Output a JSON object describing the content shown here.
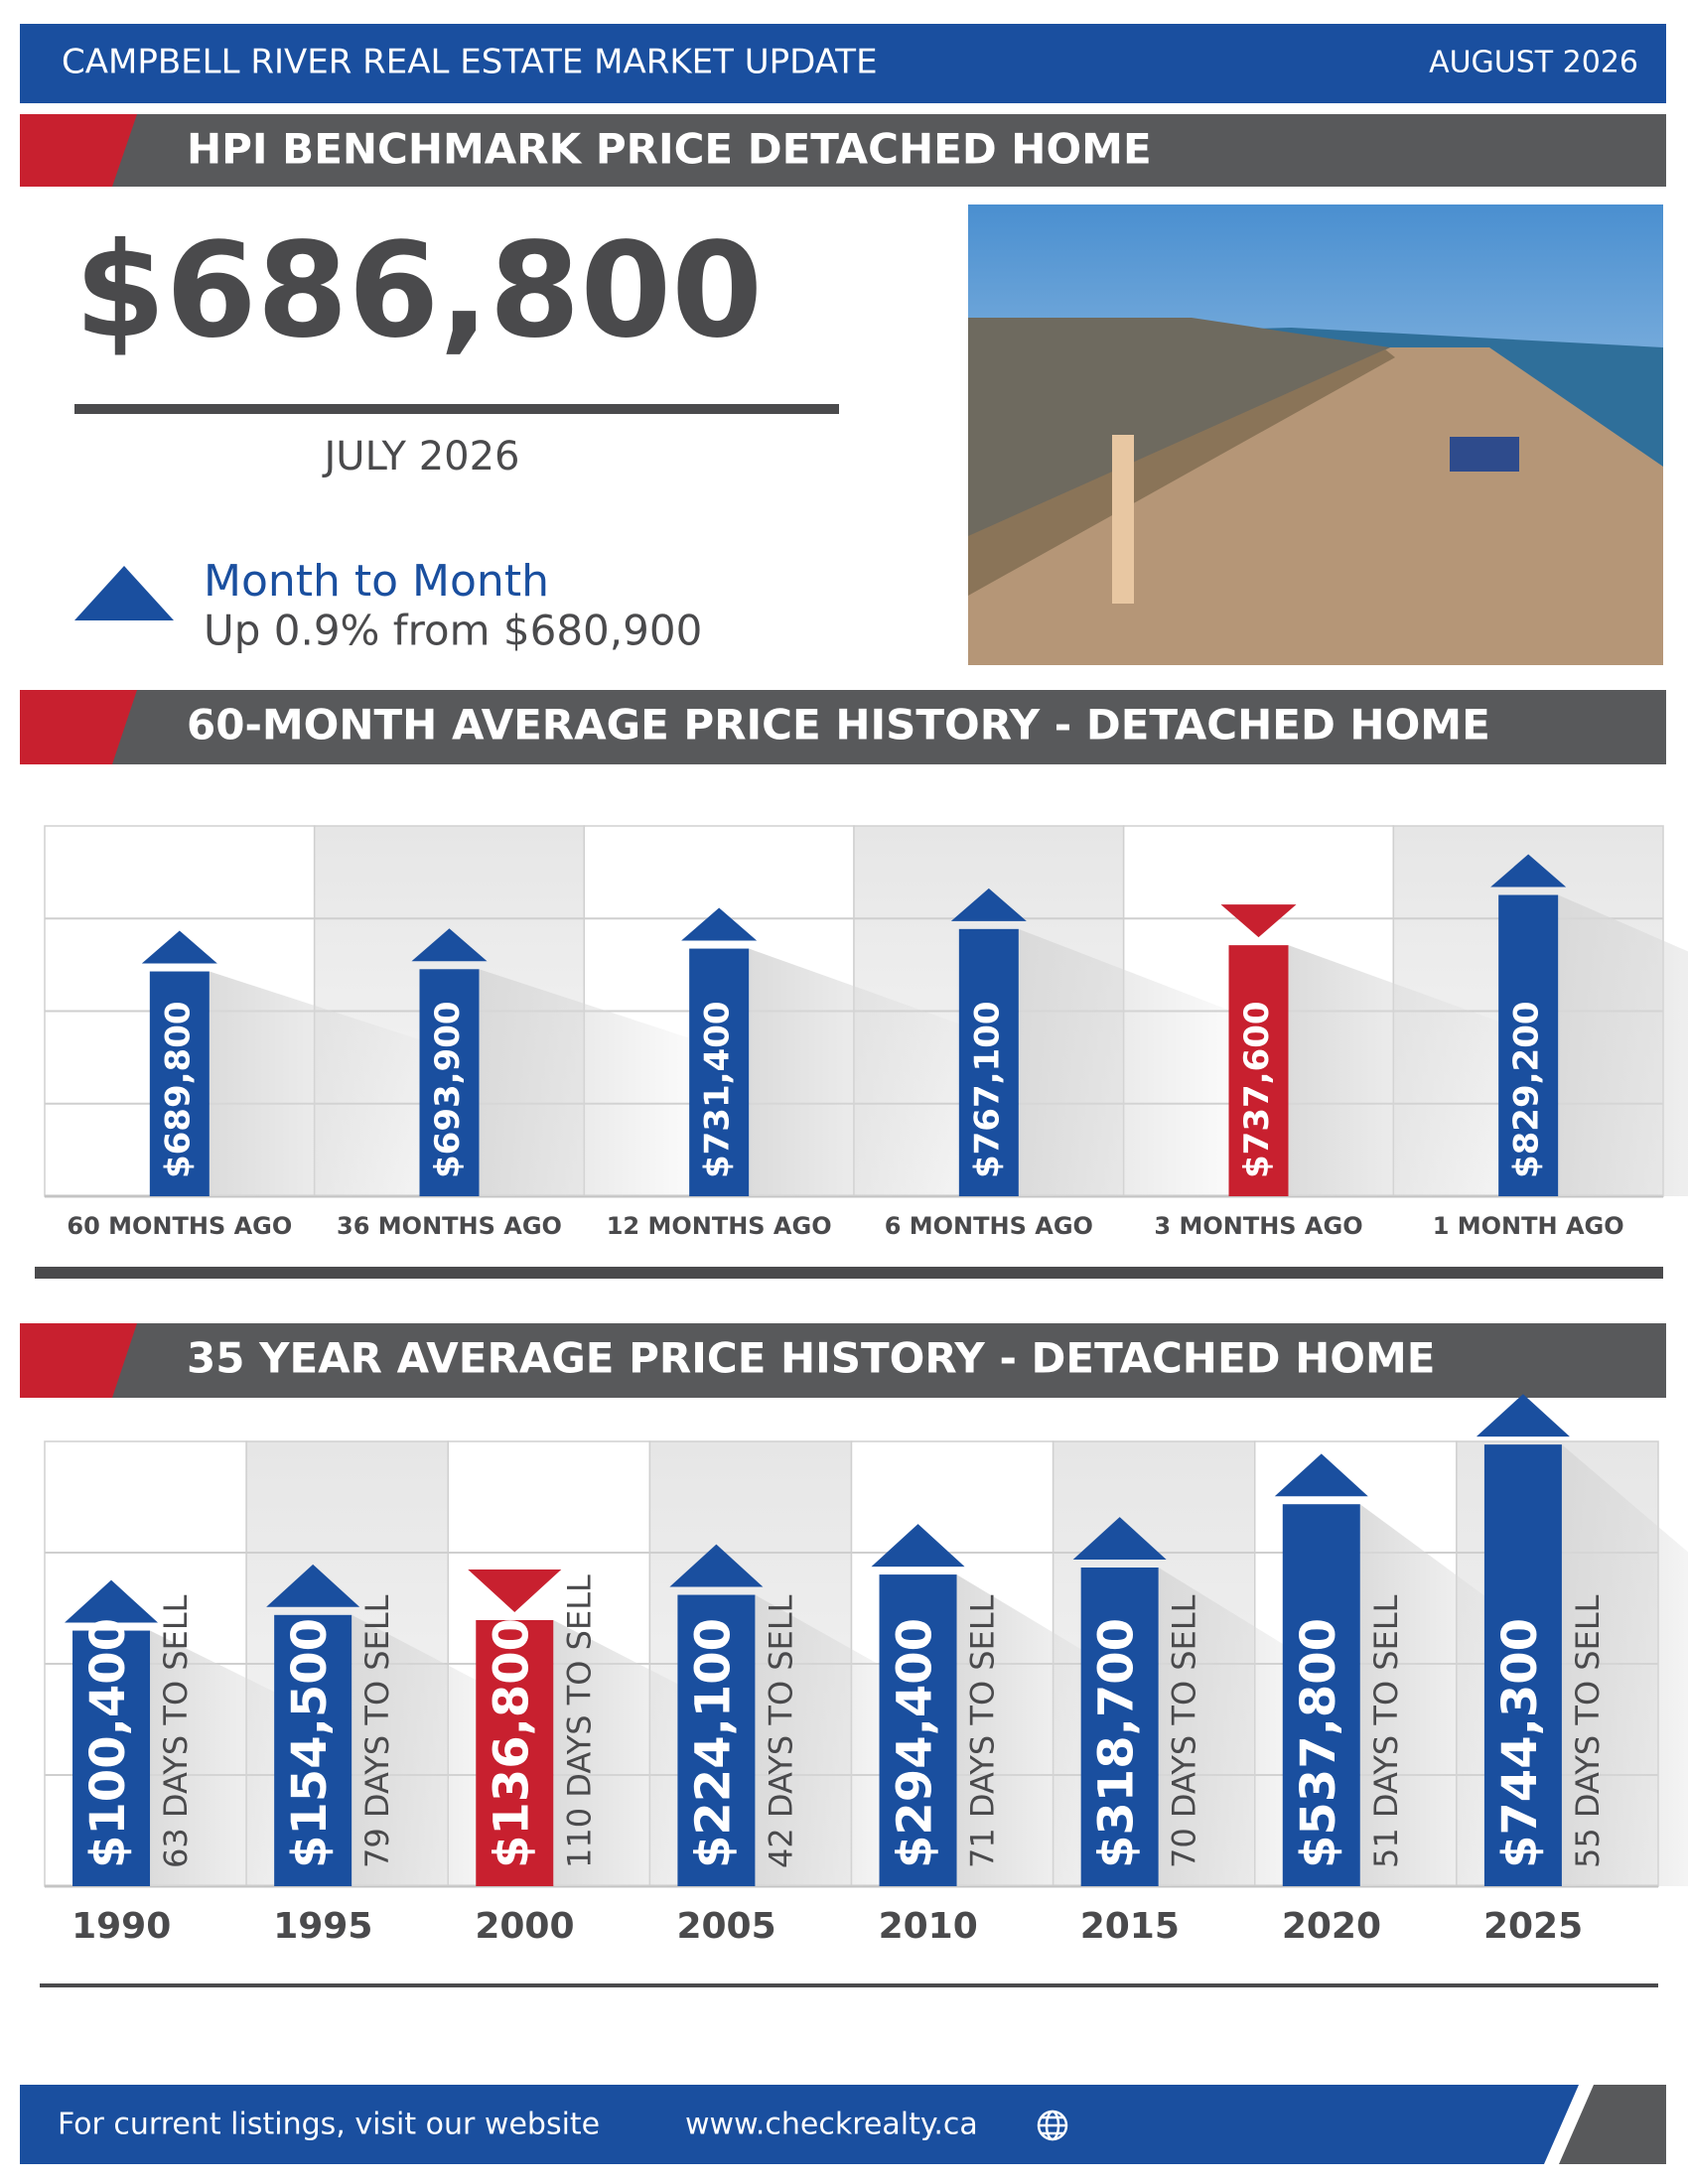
{
  "header": {
    "title": "CAMPBELL RIVER REAL ESTATE MARKET UPDATE",
    "date": "AUGUST 2026"
  },
  "hpi": {
    "section_title": "HPI BENCHMARK PRICE DETACHED HOME",
    "price": "$686,800",
    "period": "JULY 2026",
    "change_title": "Month to Month",
    "change_text": "Up 0.9% from $680,900"
  },
  "chart_data": [
    {
      "type": "bar",
      "title": "60-MONTH AVERAGE PRICE HISTORY - DETACHED HOME",
      "categories": [
        "60 MONTHS AGO",
        "36 MONTHS AGO",
        "12 MONTHS AGO",
        "6 MONTHS AGO",
        "3 MONTHS AGO",
        "1 MONTH AGO"
      ],
      "values": [
        689800,
        693900,
        731400,
        767100,
        737600,
        829200
      ],
      "value_labels": [
        "$689,800",
        "$693,900",
        "$731,400",
        "$767,100",
        "$737,600",
        "$829,200"
      ],
      "colors": [
        "#1a4f9f",
        "#1a4f9f",
        "#1a4f9f",
        "#1a4f9f",
        "#c8202f",
        "#1a4f9f"
      ],
      "directions": [
        "up",
        "up",
        "up",
        "up",
        "down",
        "up"
      ],
      "ylim": [
        280000,
        955000
      ]
    },
    {
      "type": "bar",
      "title": "35 YEAR AVERAGE PRICE HISTORY - DETACHED HOME",
      "categories": [
        "1990",
        "1995",
        "2000",
        "2005",
        "2010",
        "2015",
        "2020",
        "2025"
      ],
      "values": [
        100400,
        154500,
        136800,
        224100,
        294400,
        318700,
        537800,
        744300
      ],
      "value_labels": [
        "$100,400",
        "$154,500",
        "$136,800",
        "$224,100",
        "$294,400",
        "$318,700",
        "$537,800",
        "$744,300"
      ],
      "days_labels": [
        "63 DAYS TO SELL",
        "79 DAYS TO SELL",
        "110 DAYS TO SELL",
        "42 DAYS TO SELL",
        "71 DAYS TO SELL",
        "70 DAYS TO SELL",
        "51 DAYS TO SELL",
        "55 DAYS TO SELL"
      ],
      "colors": [
        "#1a4f9f",
        "#1a4f9f",
        "#c8202f",
        "#1a4f9f",
        "#1a4f9f",
        "#1a4f9f",
        "#1a4f9f",
        "#1a4f9f"
      ],
      "directions": [
        "up",
        "up",
        "down",
        "up",
        "up",
        "up",
        "up",
        "up"
      ],
      "ylim": [
        -784000,
        755000
      ]
    }
  ],
  "footer": {
    "text": "For current listings, visit our website",
    "url": "www.checkrealty.ca"
  }
}
